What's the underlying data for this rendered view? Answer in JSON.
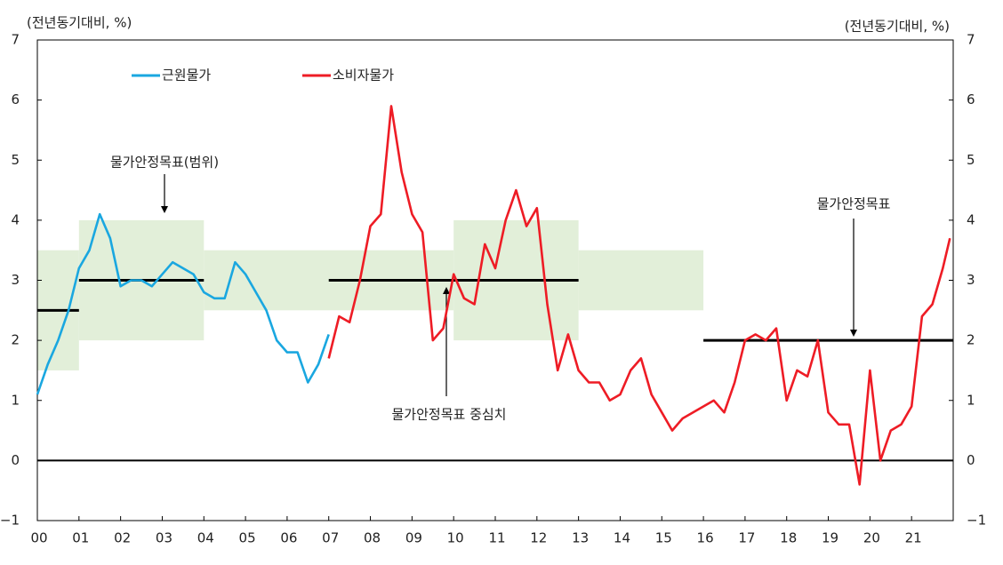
{
  "chart_data": {
    "type": "line",
    "y_label": "(전년동기대비, %)",
    "y2_label": "(전년동기대비, %)",
    "xlim": [
      2000,
      2022
    ],
    "xticks": [
      {
        "value": 2000,
        "label": "00"
      },
      {
        "value": 2001,
        "label": "01"
      },
      {
        "value": 2002,
        "label": "02"
      },
      {
        "value": 2003,
        "label": "03"
      },
      {
        "value": 2004,
        "label": "04"
      },
      {
        "value": 2005,
        "label": "05"
      },
      {
        "value": 2006,
        "label": "06"
      },
      {
        "value": 2007,
        "label": "07"
      },
      {
        "value": 2008,
        "label": "08"
      },
      {
        "value": 2009,
        "label": "09"
      },
      {
        "value": 2010,
        "label": "10"
      },
      {
        "value": 2011,
        "label": "11"
      },
      {
        "value": 2012,
        "label": "12"
      },
      {
        "value": 2013,
        "label": "13"
      },
      {
        "value": 2014,
        "label": "14"
      },
      {
        "value": 2015,
        "label": "15"
      },
      {
        "value": 2016,
        "label": "16"
      },
      {
        "value": 2017,
        "label": "17"
      },
      {
        "value": 2018,
        "label": "18"
      },
      {
        "value": 2019,
        "label": "19"
      },
      {
        "value": 2020,
        "label": "20"
      },
      {
        "value": 2021,
        "label": "21"
      }
    ],
    "ylim": [
      -1,
      7
    ],
    "yticks": [
      7,
      6,
      5,
      4,
      3,
      2,
      1,
      0,
      {
        "value": -1,
        "label": "−1"
      }
    ],
    "y2lim": [
      -1,
      7
    ],
    "y2ticks": [
      7,
      6,
      5,
      4,
      3,
      2,
      1,
      0,
      {
        "value": -1,
        "label": "−1"
      }
    ],
    "x": [
      2000,
      2000.25,
      2000.5,
      2000.75,
      2001,
      2001.25,
      2001.5,
      2001.75,
      2002,
      2002.25,
      2002.5,
      2002.75,
      2003,
      2003.25,
      2003.5,
      2003.75,
      2004,
      2004.25,
      2004.5,
      2004.75,
      2005,
      2005.25,
      2005.5,
      2005.75,
      2006,
      2006.25,
      2006.5,
      2006.75,
      2007,
      2007.25,
      2007.5,
      2007.75,
      2008,
      2008.25,
      2008.5,
      2008.75,
      2009,
      2009.25,
      2009.5,
      2009.75,
      2010,
      2010.25,
      2010.5,
      2010.75,
      2011,
      2011.25,
      2011.5,
      2011.75,
      2012,
      2012.25,
      2012.5,
      2012.75,
      2013,
      2013.25,
      2013.5,
      2013.75,
      2014,
      2014.25,
      2014.5,
      2014.75,
      2015,
      2015.25,
      2015.5,
      2015.75,
      2016,
      2016.25,
      2016.5,
      2016.75,
      2017,
      2017.25,
      2017.5,
      2017.75,
      2018,
      2018.25,
      2018.5,
      2018.75,
      2019,
      2019.25,
      2019.5,
      2019.75,
      2020,
      2020.25,
      2020.5,
      2020.75,
      2021,
      2021.25,
      2021.5,
      2021.75,
      2021.92
    ],
    "series": [
      {
        "name": "근원물가",
        "color": "#1aa7e0",
        "values": [
          1.1,
          1.6,
          2.0,
          2.5,
          3.2,
          3.5,
          4.1,
          3.7,
          2.9,
          3.0,
          3.0,
          2.9,
          3.1,
          3.3,
          3.2,
          3.1,
          2.8,
          2.7,
          2.7,
          3.3,
          3.1,
          2.8,
          2.5,
          2.0,
          1.8,
          1.8,
          1.3,
          1.6,
          2.1,
          null,
          null,
          null,
          null,
          null,
          null,
          null,
          null,
          null,
          null,
          null,
          null,
          null,
          null,
          null,
          null,
          null,
          null,
          null,
          null,
          null,
          null,
          null,
          null,
          null,
          null,
          null,
          null,
          null,
          null,
          null,
          null,
          null,
          null,
          null,
          null,
          null,
          null,
          null,
          null,
          null,
          null,
          null,
          null,
          null,
          null,
          null,
          null,
          null,
          null,
          null,
          null,
          null,
          null,
          null,
          null,
          null,
          null,
          null,
          null
        ]
      },
      {
        "name": "소비자물가",
        "color": "#ee1c25",
        "values": [
          null,
          null,
          null,
          null,
          null,
          null,
          null,
          null,
          null,
          null,
          null,
          null,
          null,
          null,
          null,
          null,
          null,
          null,
          null,
          null,
          null,
          null,
          null,
          null,
          null,
          null,
          null,
          null,
          1.7,
          2.4,
          2.3,
          3.0,
          3.9,
          4.1,
          5.9,
          4.8,
          4.1,
          3.8,
          2.0,
          2.2,
          3.1,
          2.7,
          2.6,
          3.6,
          3.2,
          4.0,
          4.5,
          3.9,
          4.2,
          2.6,
          1.5,
          2.1,
          1.5,
          1.3,
          1.3,
          1.0,
          1.1,
          1.5,
          1.7,
          1.1,
          0.8,
          0.5,
          0.7,
          0.8,
          0.9,
          1.0,
          0.8,
          1.3,
          2.0,
          2.1,
          2.0,
          2.2,
          1.0,
          1.5,
          1.4,
          2.0,
          0.8,
          0.6,
          0.6,
          -0.4,
          1.5,
          0.0,
          0.5,
          0.6,
          0.9,
          2.4,
          2.6,
          3.2,
          3.7
        ]
      }
    ],
    "target_ranges": [
      {
        "start": 2000,
        "end": 2001,
        "low": 1.5,
        "high": 3.5
      },
      {
        "start": 2001,
        "end": 2004,
        "low": 2,
        "high": 4
      },
      {
        "start": 2004,
        "end": 2010,
        "low": 2.5,
        "high": 3.5
      },
      {
        "start": 2010,
        "end": 2013,
        "low": 2,
        "high": 4
      },
      {
        "start": 2013,
        "end": 2016,
        "low": 2.5,
        "high": 3.5
      }
    ],
    "range_color": "#e2efd9",
    "target_lines": [
      {
        "start": 2000,
        "end": 2001,
        "value": 2.5
      },
      {
        "start": 2001,
        "end": 2004,
        "value": 3
      },
      {
        "start": 2007,
        "end": 2013,
        "value": 3
      },
      {
        "start": 2016,
        "end": 2022,
        "value": 2
      }
    ],
    "annotations": [
      "물가안정목표(범위)",
      "물가안정목표 중심치",
      "물가안정목표"
    ]
  }
}
